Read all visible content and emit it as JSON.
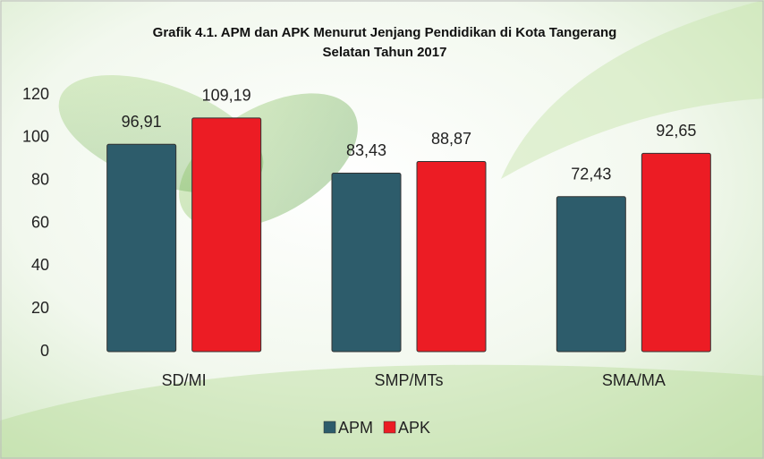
{
  "chart_data": {
    "type": "bar",
    "title": "Grafik 4.1. APM dan APK Menurut Jenjang Pendidikan di Kota Tangerang Selatan Tahun 2017",
    "categories": [
      "SD/MI",
      "SMP/MTs",
      "SMA/MA"
    ],
    "series": [
      {
        "name": "APM",
        "color": "#2d5c6b",
        "values": [
          96.91,
          83.43,
          72.43
        ],
        "value_labels": [
          "96,91",
          "83,43",
          "72,43"
        ]
      },
      {
        "name": "APK",
        "color": "#ec1c24",
        "values": [
          109.19,
          88.87,
          92.65
        ],
        "value_labels": [
          "109,19",
          "88,87",
          "92,65"
        ]
      }
    ],
    "ylim": [
      0,
      120
    ],
    "yticks": [
      0,
      20,
      40,
      60,
      80,
      100,
      120
    ],
    "grid": false,
    "legend": "bottom"
  }
}
